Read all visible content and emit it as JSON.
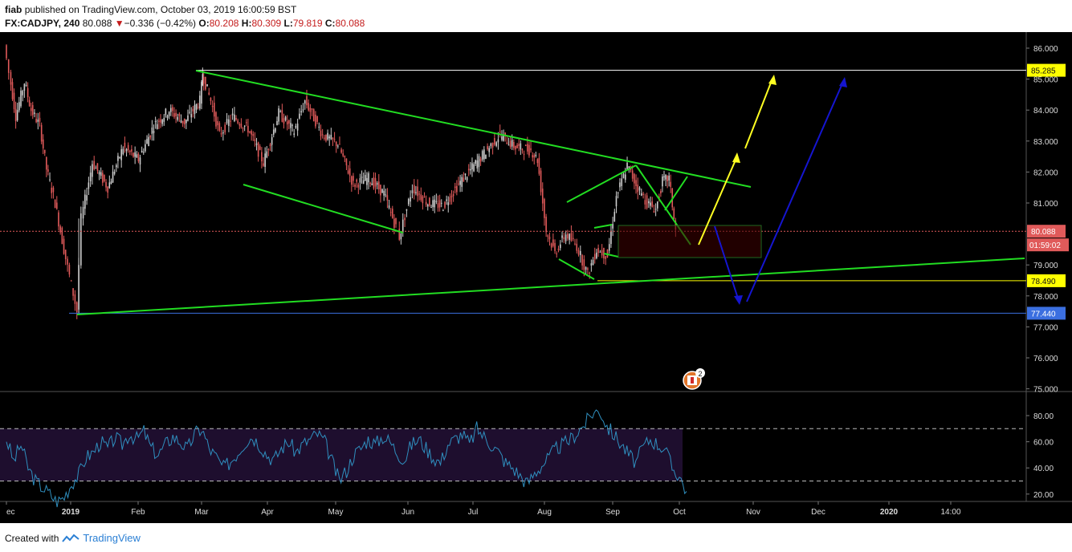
{
  "header": {
    "author": "fiab",
    "published_text": "published on TradingView.com, October 03, 2019 16:00:59 BST",
    "symbol": "FX:CADJPY, 240",
    "last": "80.088",
    "arrow": "▼",
    "change": "−0.336 (−0.42%)",
    "o_label": "O:",
    "o_value": "80.208",
    "h_label": "H:",
    "h_value": "80.309",
    "l_label": "L:",
    "l_value": "79.819",
    "c_label": "C:",
    "c_value": "80.088"
  },
  "footer": {
    "created_with": "Created with",
    "brand": "TradingView"
  },
  "colors": {
    "background": "#000000",
    "candle_up": "#cfcfcf",
    "candle_down": "#e05a5a",
    "trendline": "#22dd22",
    "projection_up": "#ffff22",
    "projection_down": "#1515d0",
    "rsi_line": "#2f8fbf",
    "rsi_band": "#1e0e2e",
    "current_price": "#e15a5a"
  },
  "chart_data": [
    {
      "type": "line",
      "title": "",
      "x_tick_labels": [
        "ec",
        "2019",
        "Feb",
        "Mar",
        "Apr",
        "May",
        "Jun",
        "Jul",
        "Aug",
        "Sep",
        "Oct",
        "Nov",
        "Dec",
        "2020",
        "14:00"
      ],
      "y_tick_labels": [
        "86.000",
        "85.000",
        "84.000",
        "83.000",
        "82.000",
        "81.000",
        "79.000",
        "78.000",
        "77.000",
        "76.000",
        "75.000"
      ],
      "ylim": [
        74.8,
        86.5
      ],
      "price_path": [
        [
          "2018-12-01",
          86.1
        ],
        [
          "2018-12-03",
          85.2
        ],
        [
          "2018-12-06",
          83.8
        ],
        [
          "2018-12-10",
          84.9
        ],
        [
          "2018-12-13",
          84.0
        ],
        [
          "2018-12-17",
          83.5
        ],
        [
          "2018-12-20",
          82.1
        ],
        [
          "2018-12-24",
          81.0
        ],
        [
          "2018-12-28",
          79.5
        ],
        [
          "2019-01-03",
          77.5
        ],
        [
          "2019-01-05",
          80.5
        ],
        [
          "2019-01-10",
          82.3
        ],
        [
          "2019-01-17",
          81.5
        ],
        [
          "2019-01-24",
          82.8
        ],
        [
          "2019-01-31",
          82.4
        ],
        [
          "2019-02-07",
          83.5
        ],
        [
          "2019-02-14",
          84.0
        ],
        [
          "2019-02-21",
          83.6
        ],
        [
          "2019-02-28",
          84.3
        ],
        [
          "2019-03-01",
          85.2
        ],
        [
          "2019-03-05",
          84.3
        ],
        [
          "2019-03-09",
          83.2
        ],
        [
          "2019-03-15",
          83.8
        ],
        [
          "2019-03-22",
          83.4
        ],
        [
          "2019-03-29",
          82.3
        ],
        [
          "2019-04-05",
          83.9
        ],
        [
          "2019-04-12",
          83.3
        ],
        [
          "2019-04-17",
          84.3
        ],
        [
          "2019-04-25",
          83.2
        ],
        [
          "2019-05-02",
          82.9
        ],
        [
          "2019-05-09",
          81.6
        ],
        [
          "2019-05-16",
          81.8
        ],
        [
          "2019-05-23",
          81.3
        ],
        [
          "2019-05-30",
          79.9
        ],
        [
          "2019-06-05",
          81.5
        ],
        [
          "2019-06-12",
          81.0
        ],
        [
          "2019-06-19",
          80.9
        ],
        [
          "2019-06-26",
          81.6
        ],
        [
          "2019-07-03",
          82.2
        ],
        [
          "2019-07-10",
          82.8
        ],
        [
          "2019-07-15",
          83.2
        ],
        [
          "2019-07-22",
          82.8
        ],
        [
          "2019-07-29",
          82.7
        ],
        [
          "2019-08-01",
          82.4
        ],
        [
          "2019-08-05",
          80.1
        ],
        [
          "2019-08-09",
          79.4
        ],
        [
          "2019-08-14",
          80.0
        ],
        [
          "2019-08-19",
          79.6
        ],
        [
          "2019-08-24",
          78.7
        ],
        [
          "2019-08-28",
          79.5
        ],
        [
          "2019-09-02",
          79.3
        ],
        [
          "2019-09-06",
          81.2
        ],
        [
          "2019-09-11",
          82.2
        ],
        [
          "2019-09-15",
          81.6
        ],
        [
          "2019-09-20",
          81.0
        ],
        [
          "2019-09-24",
          80.8
        ],
        [
          "2019-09-27",
          81.7
        ],
        [
          "2019-09-30",
          81.8
        ],
        [
          "2019-10-03",
          80.088
        ]
      ],
      "horizontal_levels": [
        {
          "label": "85.285",
          "value": 85.285,
          "color": "#ffffff",
          "label_bg": "#ffff00"
        },
        {
          "label": "80.088",
          "value": 80.088,
          "color": "#e15a5a",
          "label_bg": "#e05a5a"
        },
        {
          "label": "78.490",
          "value": 78.49,
          "color": "#ffff00",
          "label_bg": "#ffff00"
        },
        {
          "label": "77.440",
          "value": 77.44,
          "color": "#3b6fe0",
          "label_bg": "#3b6fe0"
        }
      ],
      "countdown_label": "01:59:02",
      "event_badge": "2"
    },
    {
      "type": "line",
      "title": "",
      "y_tick_labels": [
        "80.00",
        "60.00",
        "40.00",
        "20.00"
      ],
      "ylim": [
        7,
        88
      ],
      "band": [
        30,
        70
      ],
      "rsi_values": [
        62,
        45,
        58,
        40,
        30,
        25,
        20,
        14,
        18,
        28,
        35,
        48,
        52,
        60,
        55,
        63,
        58,
        66,
        62,
        68,
        55,
        50,
        58,
        64,
        60,
        54,
        66,
        70,
        55,
        48,
        40,
        45,
        52,
        60,
        64,
        58,
        50,
        46,
        55,
        60,
        52,
        58,
        62,
        66,
        60,
        45,
        30,
        38,
        50,
        55,
        62,
        58,
        64,
        60,
        52,
        46,
        58,
        62,
        55,
        48,
        44,
        58,
        62,
        66,
        58,
        70,
        64,
        58,
        52,
        44,
        40,
        34,
        28,
        36,
        42,
        48,
        55,
        58,
        62,
        68,
        74,
        82,
        84,
        72,
        65,
        58,
        50,
        44,
        56,
        62,
        58,
        55,
        40,
        34,
        22
      ]
    }
  ]
}
